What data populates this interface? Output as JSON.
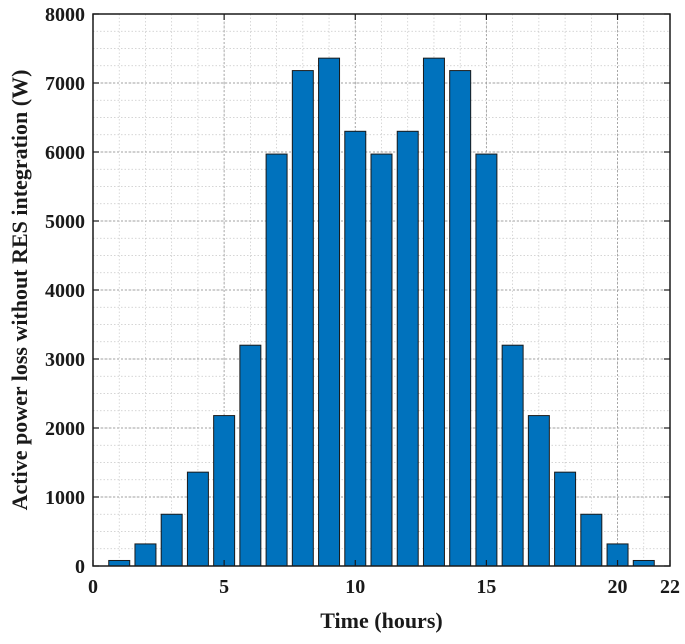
{
  "chart_data": {
    "type": "bar",
    "title": "",
    "xlabel": "Time (hours)",
    "ylabel": "Active power loss without RES integration (W)",
    "x": [
      1,
      2,
      3,
      4,
      5,
      6,
      7,
      8,
      9,
      10,
      11,
      12,
      13,
      14,
      15,
      16,
      17,
      18,
      19,
      20,
      21
    ],
    "values": [
      80,
      320,
      750,
      1360,
      2180,
      3200,
      5970,
      7180,
      7360,
      6300,
      5970,
      6300,
      7360,
      7180,
      5970,
      3200,
      2180,
      1360,
      750,
      320,
      80
    ],
    "xlim": [
      0,
      22
    ],
    "ylim": [
      0,
      8000
    ],
    "xticks": [
      0,
      5,
      10,
      15,
      20,
      22
    ],
    "yticks": [
      0,
      1000,
      2000,
      3000,
      4000,
      5000,
      6000,
      7000,
      8000
    ],
    "grid": true,
    "minor_grid": true,
    "bar_color": "#0072BD",
    "bar_edge_color": "#1a1a1a"
  }
}
